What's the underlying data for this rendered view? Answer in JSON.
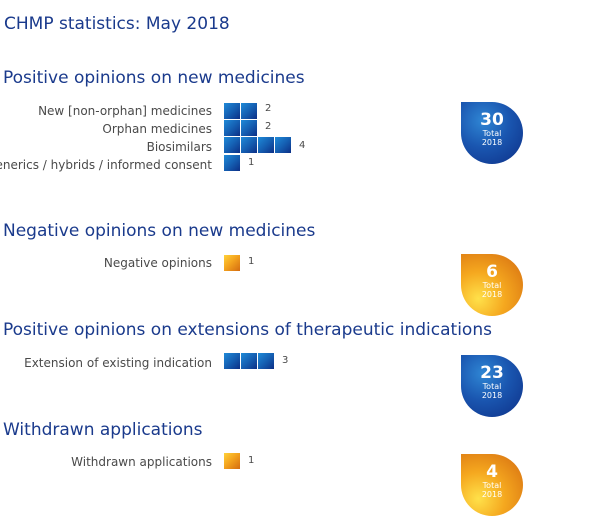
{
  "page_title": "CHMP statistics: May 2018",
  "colors": {
    "title": "#1a3a8c",
    "blue": "#1560b3",
    "orange": "#f4a41e"
  },
  "chart_data": [
    {
      "type": "bar",
      "title": "Positive opinions on new medicines",
      "color": "blue",
      "categories": [
        "New [non-orphan] medicines",
        "Orphan medicines",
        "Biosimilars",
        "Generics / hybrids / informed consent"
      ],
      "values": [
        2,
        2,
        4,
        1
      ],
      "total": {
        "value": "30",
        "label": "Total",
        "year": "2018"
      }
    },
    {
      "type": "bar",
      "title": "Negative opinions on new medicines",
      "color": "orange",
      "categories": [
        "Negative opinions"
      ],
      "values": [
        1
      ],
      "total": {
        "value": "6",
        "label": "Total",
        "year": "2018"
      }
    },
    {
      "type": "bar",
      "title": "Positive opinions on extensions of therapeutic indications",
      "color": "blue",
      "categories": [
        "Extension of existing indication"
      ],
      "values": [
        3
      ],
      "total": {
        "value": "23",
        "label": "Total",
        "year": "2018"
      }
    },
    {
      "type": "bar",
      "title": "Withdrawn applications",
      "color": "orange",
      "categories": [
        "Withdrawn applications"
      ],
      "values": [
        1
      ],
      "total": {
        "value": "4",
        "label": "Total",
        "year": "2018"
      }
    }
  ]
}
